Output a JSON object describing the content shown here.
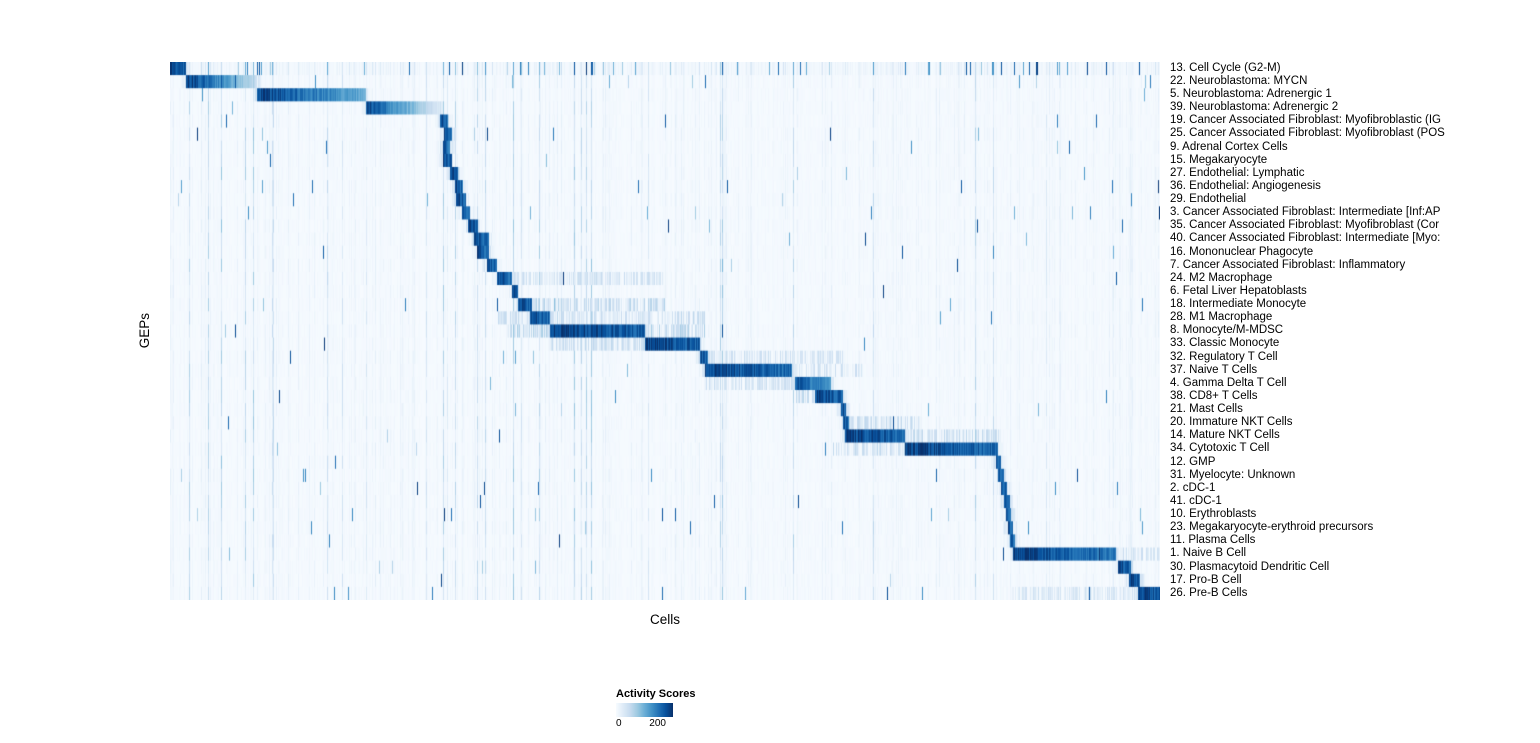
{
  "chart_data": {
    "type": "heatmap",
    "title": "",
    "xlabel": "Cells",
    "ylabel": "GEPs",
    "legend": {
      "title": "Activity Scores",
      "tick_min": "0",
      "tick_max": "200"
    },
    "value_range": [
      0,
      200
    ],
    "colormap_name": "Blues",
    "colormap_stops": [
      "#f7fbff",
      "#deebf7",
      "#c6dbef",
      "#9ecae1",
      "#6baed6",
      "#4292c6",
      "#2171b5",
      "#08519c",
      "#08306b"
    ],
    "n_rows": 41,
    "rows": [
      {
        "label": "13. Cell Cycle (G2-M)",
        "start": 0.0,
        "end": 0.016,
        "peak": 215,
        "noise": 2.2,
        "ticks": 0.045
      },
      {
        "label": "22. Neuroblastoma: MYCN",
        "start": 0.016,
        "end": 0.088,
        "peak": 215,
        "fade": 0.75,
        "ticks": 0.006
      },
      {
        "label": "5. Neuroblastoma: Adrenergic 1",
        "start": 0.088,
        "end": 0.198,
        "peak": 208,
        "fade": 0.45
      },
      {
        "label": "39. Neuroblastoma: Adrenergic 2",
        "start": 0.198,
        "end": 0.273,
        "peak": 200,
        "fade": 0.85
      },
      {
        "label": "19. Cancer Associated Fibroblast: Myofibroblastic (IG",
        "start": 0.273,
        "end": 0.281,
        "peak": 210,
        "ticks": 0.004
      },
      {
        "label": "25. Cancer Associated Fibroblast: Myofibroblast (POS",
        "start": 0.277,
        "end": 0.285,
        "peak": 205,
        "ticks": 0.004
      },
      {
        "label": "9. Adrenal Cortex Cells",
        "start": 0.276,
        "end": 0.283,
        "peak": 195,
        "ticks": 0.004
      },
      {
        "label": "15. Megakaryocyte",
        "start": 0.276,
        "end": 0.285,
        "peak": 210,
        "ticks": 0.004
      },
      {
        "label": "27. Endothelial: Lymphatic",
        "start": 0.283,
        "end": 0.291,
        "peak": 210,
        "ticks": 0.004
      },
      {
        "label": "36. Endothelial: Angiogenesis",
        "start": 0.288,
        "end": 0.296,
        "peak": 205,
        "ticks": 0.004
      },
      {
        "label": "29. Endothelial",
        "start": 0.289,
        "end": 0.299,
        "peak": 210,
        "ticks": 0.004
      },
      {
        "label": "3. Cancer Associated Fibroblast: Intermediate [Inf:AP",
        "start": 0.295,
        "end": 0.303,
        "peak": 205,
        "ticks": 0.004
      },
      {
        "label": "35. Cancer Associated Fibroblast: Myofibroblast (Cor",
        "start": 0.301,
        "end": 0.311,
        "peak": 210,
        "ticks": 0.004
      },
      {
        "label": "40. Cancer Associated Fibroblast: Intermediate [Myo:",
        "start": 0.307,
        "end": 0.322,
        "peak": 205,
        "ticks": 0.004
      },
      {
        "label": "16. Mononuclear Phagocyte",
        "start": 0.31,
        "end": 0.322,
        "peak": 205,
        "ticks": 0.004
      },
      {
        "label": "7. Cancer Associated Fibroblast: Inflammatory",
        "start": 0.32,
        "end": 0.33,
        "peak": 205,
        "ticks": 0.004
      },
      {
        "label": "24. M2 Macrophage",
        "start": 0.33,
        "end": 0.345,
        "peak": 205,
        "soft": [
          [
            0.345,
            0.5,
            35
          ]
        ]
      },
      {
        "label": "6. Fetal Liver Hepatoblasts",
        "start": 0.345,
        "end": 0.352,
        "peak": 205
      },
      {
        "label": "18. Intermediate Monocyte",
        "start": 0.352,
        "end": 0.366,
        "peak": 205,
        "soft": [
          [
            0.366,
            0.5,
            45
          ]
        ]
      },
      {
        "label": "28. M1 Macrophage",
        "start": 0.364,
        "end": 0.384,
        "peak": 205,
        "soft": [
          [
            0.33,
            0.54,
            40
          ]
        ]
      },
      {
        "label": "8. Monocyte/M-MDSC",
        "start": 0.384,
        "end": 0.48,
        "peak": 215,
        "soft": [
          [
            0.34,
            0.54,
            50
          ]
        ]
      },
      {
        "label": "33. Classic Monocyte",
        "start": 0.48,
        "end": 0.535,
        "peak": 215,
        "soft": [
          [
            0.384,
            0.48,
            40
          ]
        ]
      },
      {
        "label": "32. Regulatory T Cell",
        "start": 0.535,
        "end": 0.543,
        "peak": 205,
        "soft": [
          [
            0.543,
            0.68,
            35
          ]
        ],
        "ticks": 0.008
      },
      {
        "label": "37. Naive T Cells",
        "start": 0.54,
        "end": 0.628,
        "peak": 206,
        "soft": [
          [
            0.628,
            0.7,
            35
          ]
        ]
      },
      {
        "label": "4. Gamma Delta T Cell",
        "start": 0.631,
        "end": 0.668,
        "peak": 190,
        "fade": 0.3,
        "soft": [
          [
            0.54,
            0.631,
            35
          ]
        ]
      },
      {
        "label": "38. CD8+ T Cells",
        "start": 0.652,
        "end": 0.68,
        "peak": 210,
        "soft": [
          [
            0.63,
            0.652,
            45
          ]
        ]
      },
      {
        "label": "21. Mast Cells",
        "start": 0.678,
        "end": 0.683,
        "peak": 205
      },
      {
        "label": "20. Immature NKT Cells",
        "start": 0.68,
        "end": 0.686,
        "peak": 195,
        "soft": [
          [
            0.686,
            0.76,
            40
          ]
        ]
      },
      {
        "label": "14. Mature NKT Cells",
        "start": 0.682,
        "end": 0.742,
        "peak": 210,
        "soft": [
          [
            0.742,
            0.84,
            40
          ]
        ]
      },
      {
        "label": "34. Cytotoxic T Cell",
        "start": 0.742,
        "end": 0.836,
        "peak": 210,
        "soft": [
          [
            0.67,
            0.742,
            40
          ]
        ]
      },
      {
        "label": "12. GMP",
        "start": 0.834,
        "end": 0.839,
        "peak": 200,
        "ticks": 0.005
      },
      {
        "label": "31. Myelocyte: Unknown",
        "start": 0.836,
        "end": 0.842,
        "peak": 195,
        "ticks": 0.007
      },
      {
        "label": "2. cDC-1",
        "start": 0.839,
        "end": 0.845,
        "peak": 200,
        "ticks": 0.006
      },
      {
        "label": "41. cDC-1",
        "start": 0.842,
        "end": 0.848,
        "peak": 200,
        "ticks": 0.005
      },
      {
        "label": "10. Erythroblasts",
        "start": 0.844,
        "end": 0.85,
        "peak": 205,
        "ticks": 0.007
      },
      {
        "label": "23. Megakaryocyte-erythroid precursors",
        "start": 0.846,
        "end": 0.852,
        "peak": 200,
        "ticks": 0.006
      },
      {
        "label": "11. Plasma Cells",
        "start": 0.848,
        "end": 0.854,
        "peak": 205,
        "ticks": 0.005
      },
      {
        "label": "1. Naive B Cell",
        "start": 0.852,
        "end": 0.956,
        "peak": 212,
        "fade": 0.25,
        "soft": [
          [
            0.956,
            1.0,
            35
          ]
        ]
      },
      {
        "label": "30. Plasmacytoid Dendritic Cell",
        "start": 0.958,
        "end": 0.971,
        "peak": 210,
        "ticks": 0.004
      },
      {
        "label": "17. Pro-B Cell",
        "start": 0.969,
        "end": 0.98,
        "peak": 210
      },
      {
        "label": "26. Pre-B Cells",
        "start": 0.978,
        "end": 1.0,
        "peak": 215,
        "soft": [
          [
            0.85,
            0.978,
            30
          ]
        ],
        "ticks": 0.01
      }
    ]
  }
}
